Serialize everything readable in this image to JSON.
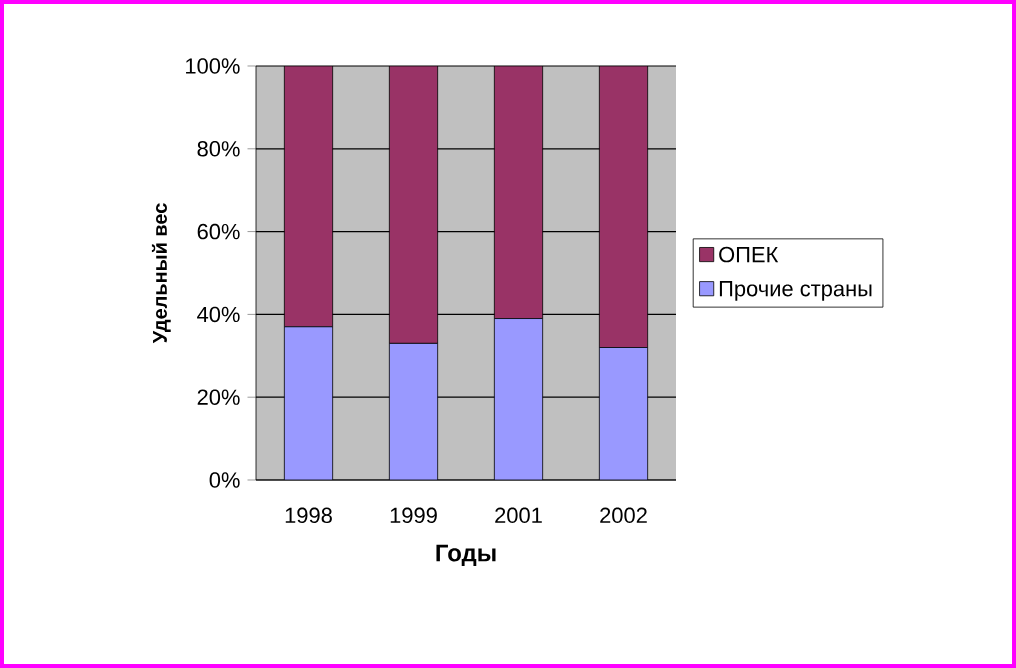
{
  "chart_data": {
    "type": "bar",
    "stacked": true,
    "xlabel": "Годы",
    "ylabel": "Удельный вес",
    "categories": [
      "1998",
      "1999",
      "2001",
      "2002"
    ],
    "series": [
      {
        "name": "Прочие страны",
        "color": "#9999ff",
        "values": [
          37,
          33,
          39,
          32
        ]
      },
      {
        "name": "ОПЕК",
        "color": "#993366",
        "values": [
          63,
          67,
          61,
          68
        ]
      }
    ],
    "ylim": [
      0,
      100
    ],
    "yticks": [
      {
        "value": 0,
        "label": "0%"
      },
      {
        "value": 20,
        "label": "20%"
      },
      {
        "value": 40,
        "label": "40%"
      },
      {
        "value": 60,
        "label": "60%"
      },
      {
        "value": 80,
        "label": "80%"
      },
      {
        "value": 100,
        "label": "100%"
      }
    ],
    "grid": "y",
    "legend": "right"
  }
}
